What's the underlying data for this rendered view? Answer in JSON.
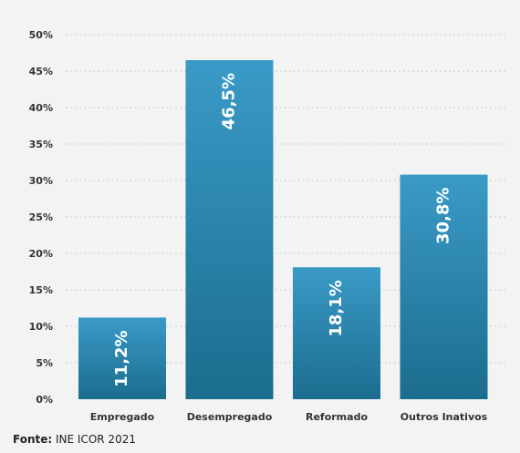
{
  "chart_data": {
    "type": "bar",
    "categories": [
      "Empregado",
      "Desempregado",
      "Reformado",
      "Outros Inativos"
    ],
    "values": [
      11.2,
      46.5,
      18.1,
      30.8
    ],
    "data_labels": [
      "11,2%",
      "46,5%",
      "18,1%",
      "30,8%"
    ],
    "title": "",
    "xlabel": "",
    "ylabel": "",
    "ylim": [
      0,
      50
    ],
    "yticks": [
      0,
      5,
      10,
      15,
      20,
      25,
      30,
      35,
      40,
      45,
      50
    ],
    "ytick_labels": [
      "0%",
      "5%",
      "10%",
      "15%",
      "20%",
      "25%",
      "30%",
      "35%",
      "40%",
      "45%",
      "50%"
    ],
    "grid": "horizontal dotted",
    "colors": {
      "bar_top": "#3a9ac7",
      "bar_bottom": "#1b6d8e",
      "grid": "#c8c8c8",
      "text": "#333333"
    }
  },
  "source": {
    "label": "Fonte:",
    "text": "INE ICOR 2021"
  }
}
